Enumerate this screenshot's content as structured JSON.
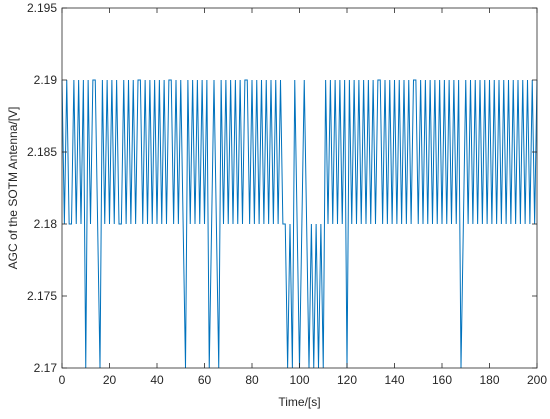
{
  "chart_data": {
    "type": "line",
    "xlabel": "Time/[s]",
    "ylabel": "AGC of the SOTM Antenna/[V]",
    "x": [
      0,
      1,
      2,
      3,
      4,
      5,
      6,
      7,
      8,
      9,
      10,
      11,
      12,
      13,
      14,
      15,
      16,
      17,
      18,
      19,
      20,
      21,
      22,
      23,
      24,
      25,
      26,
      27,
      28,
      29,
      30,
      31,
      32,
      33,
      34,
      35,
      36,
      37,
      38,
      39,
      40,
      41,
      42,
      43,
      44,
      45,
      46,
      47,
      48,
      49,
      50,
      51,
      52,
      53,
      54,
      55,
      56,
      57,
      58,
      59,
      60,
      61,
      62,
      63,
      64,
      65,
      66,
      67,
      68,
      69,
      70,
      71,
      72,
      73,
      74,
      75,
      76,
      77,
      78,
      79,
      80,
      81,
      82,
      83,
      84,
      85,
      86,
      87,
      88,
      89,
      90,
      91,
      92,
      93,
      94,
      95,
      96,
      97,
      98,
      99,
      100,
      101,
      102,
      103,
      104,
      105,
      106,
      107,
      108,
      109,
      110,
      111,
      112,
      113,
      114,
      115,
      116,
      117,
      118,
      119,
      120,
      121,
      122,
      123,
      124,
      125,
      126,
      127,
      128,
      129,
      130,
      131,
      132,
      133,
      134,
      135,
      136,
      137,
      138,
      139,
      140,
      141,
      142,
      143,
      144,
      145,
      146,
      147,
      148,
      149,
      150,
      151,
      152,
      153,
      154,
      155,
      156,
      157,
      158,
      159,
      160,
      161,
      162,
      163,
      164,
      165,
      166,
      167,
      168,
      169,
      170,
      171,
      172,
      173,
      174,
      175,
      176,
      177,
      178,
      179,
      180,
      181,
      182,
      183,
      184,
      185,
      186,
      187,
      188,
      189,
      190,
      191,
      192,
      193,
      194,
      195,
      196,
      197,
      198,
      199,
      200
    ],
    "series": [
      {
        "color": "#0072bd",
        "values": [
          2.19,
          2.18,
          2.19,
          2.18,
          2.18,
          2.19,
          2.18,
          2.19,
          2.18,
          2.19,
          2.17,
          2.19,
          2.18,
          2.19,
          2.19,
          2.18,
          2.17,
          2.19,
          2.18,
          2.19,
          2.18,
          2.19,
          2.18,
          2.19,
          2.18,
          2.18,
          2.19,
          2.18,
          2.19,
          2.18,
          2.19,
          2.18,
          2.19,
          2.19,
          2.18,
          2.19,
          2.18,
          2.19,
          2.18,
          2.19,
          2.18,
          2.19,
          2.18,
          2.19,
          2.18,
          2.19,
          2.19,
          2.18,
          2.19,
          2.18,
          2.19,
          2.18,
          2.17,
          2.19,
          2.18,
          2.19,
          2.18,
          2.19,
          2.18,
          2.19,
          2.18,
          2.19,
          2.17,
          2.18,
          2.19,
          2.18,
          2.17,
          2.19,
          2.18,
          2.19,
          2.18,
          2.19,
          2.18,
          2.19,
          2.18,
          2.19,
          2.18,
          2.19,
          2.19,
          2.18,
          2.19,
          2.18,
          2.19,
          2.18,
          2.19,
          2.18,
          2.19,
          2.18,
          2.19,
          2.18,
          2.19,
          2.18,
          2.19,
          2.18,
          2.18,
          2.17,
          2.18,
          2.17,
          2.19,
          2.18,
          2.17,
          2.18,
          2.19,
          2.18,
          2.17,
          2.18,
          2.17,
          2.18,
          2.17,
          2.18,
          2.17,
          2.19,
          2.18,
          2.19,
          2.18,
          2.19,
          2.18,
          2.19,
          2.18,
          2.19,
          2.17,
          2.19,
          2.18,
          2.19,
          2.18,
          2.19,
          2.18,
          2.19,
          2.18,
          2.19,
          2.18,
          2.19,
          2.18,
          2.19,
          2.19,
          2.18,
          2.19,
          2.18,
          2.19,
          2.18,
          2.19,
          2.18,
          2.19,
          2.18,
          2.19,
          2.18,
          2.19,
          2.18,
          2.19,
          2.19,
          2.18,
          2.19,
          2.18,
          2.19,
          2.18,
          2.19,
          2.18,
          2.19,
          2.18,
          2.19,
          2.18,
          2.19,
          2.18,
          2.19,
          2.18,
          2.19,
          2.18,
          2.19,
          2.17,
          2.18,
          2.19,
          2.18,
          2.19,
          2.18,
          2.19,
          2.18,
          2.19,
          2.18,
          2.19,
          2.18,
          2.19,
          2.18,
          2.19,
          2.18,
          2.19,
          2.18,
          2.19,
          2.18,
          2.19,
          2.18,
          2.19,
          2.18,
          2.19,
          2.18,
          2.19,
          2.18,
          2.19,
          2.18,
          2.19,
          2.18,
          2.19
        ]
      }
    ],
    "xlim": [
      0,
      200
    ],
    "xticks": [
      0,
      20,
      40,
      60,
      80,
      100,
      120,
      140,
      160,
      180,
      200
    ],
    "ylim": [
      2.17,
      2.195
    ],
    "yticks": [
      2.17,
      2.175,
      2.18,
      2.185,
      2.19,
      2.195
    ],
    "grid": false
  }
}
